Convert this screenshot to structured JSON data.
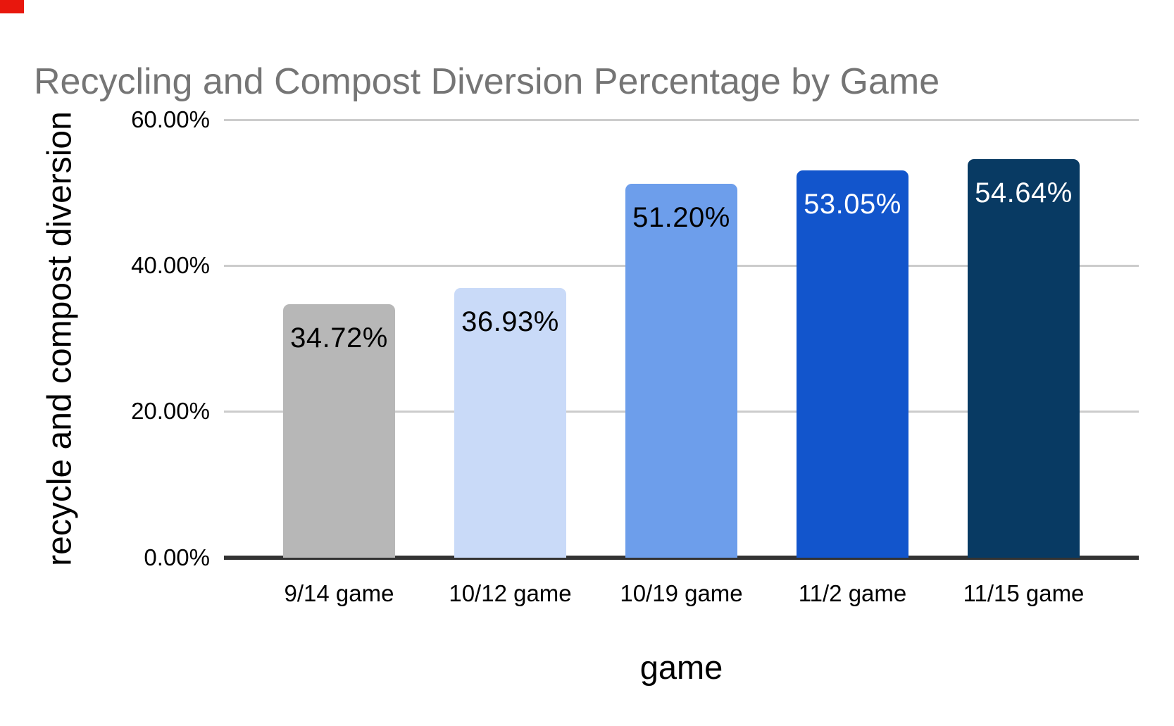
{
  "page": {
    "corner_mark_color": "#e8170d",
    "background": "#ffffff"
  },
  "chart_data": {
    "type": "bar",
    "title": "Recycling and Compost Diversion Percentage by Game",
    "title_color": "#757575",
    "xlabel": "game",
    "ylabel": "recycle and compost diversion",
    "categories": [
      "9/14 game",
      "10/12 game",
      "10/19 game",
      "11/2 game",
      "11/15 game"
    ],
    "values": [
      34.72,
      36.93,
      51.2,
      53.05,
      54.64
    ],
    "value_labels": [
      "34.72%",
      "36.93%",
      "51.20%",
      "53.05%",
      "54.64%"
    ],
    "bar_colors": [
      "#b7b7b7",
      "#c9daf8",
      "#6d9eeb",
      "#1255cc",
      "#083a63"
    ],
    "value_label_colors": [
      "#000000",
      "#000000",
      "#000000",
      "#ffffff",
      "#ffffff"
    ],
    "ylim": [
      0,
      60
    ],
    "yticks": [
      "60.00%",
      "40.00%",
      "20.00%",
      "0.00%"
    ],
    "ytick_values": [
      60,
      40,
      20,
      0
    ],
    "grid": true,
    "gridline_color": "#cccccc",
    "axis_line_color": "#333333",
    "legend": "none"
  }
}
